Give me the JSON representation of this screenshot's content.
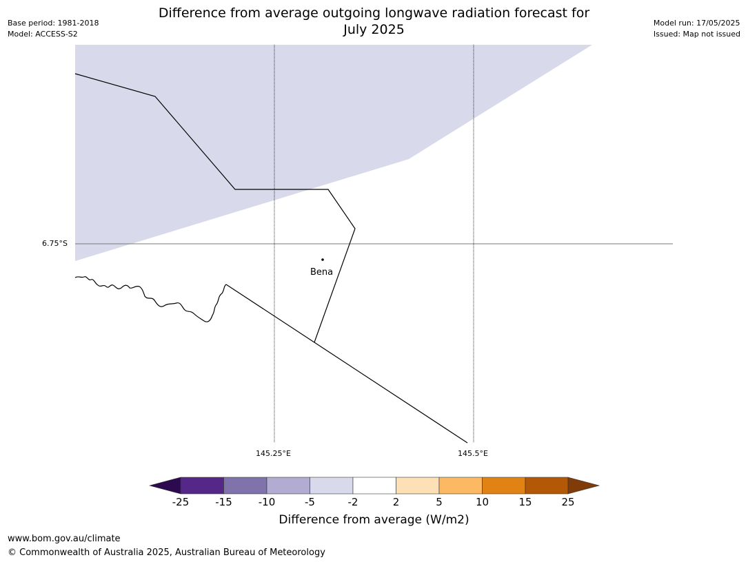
{
  "title_line1": "Difference from average outgoing longwave radiation forecast for",
  "title_line2": "July 2025",
  "base_period": "Base period: 1981-2018",
  "model": "Model: ACCESS-S2",
  "model_run": "Model run: 17/05/2025",
  "issued": "Issued: Map not issued",
  "map": {
    "lat_label": "6.75°S",
    "lon_labels": [
      "145.25°E",
      "145.5°E"
    ],
    "place": "Bena",
    "shaded_band": "-5 to -2",
    "shaded_color": "#d8d9ea"
  },
  "colorbar": {
    "title": "Difference from average (W/m2)",
    "ticks": [
      "-25",
      "-15",
      "-10",
      "-5",
      "-2",
      "2",
      "5",
      "10",
      "15",
      "25"
    ],
    "colors": [
      "#2d0a4f",
      "#542788",
      "#8073ac",
      "#b2abd2",
      "#d8daeb",
      "#ffffff",
      "#fee0b6",
      "#fdb863",
      "#e08214",
      "#b35806",
      "#7f3b08"
    ]
  },
  "footer_url": "www.bom.gov.au/climate",
  "footer_copyright": "© Commonwealth of Australia 2025, Australian Bureau of Meteorology"
}
